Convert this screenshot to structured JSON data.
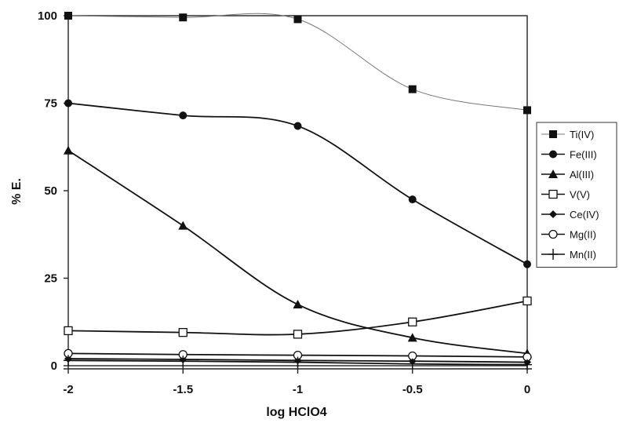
{
  "chart_data": {
    "type": "line",
    "title": "",
    "xlabel": "log HClO4",
    "ylabel": "% E.",
    "xlim": [
      -2,
      0
    ],
    "ylim": [
      0,
      100
    ],
    "x_ticks": [
      -2,
      -1.5,
      -1,
      -0.5,
      0
    ],
    "x_tick_labels": [
      "-2",
      "-1.5",
      "-1",
      "-0.5",
      "0"
    ],
    "y_ticks": [
      0,
      25,
      50,
      75,
      100
    ],
    "y_tick_labels": [
      "0",
      "25",
      "50",
      "75",
      "100"
    ],
    "grid": false,
    "legend_position": "right",
    "x": [
      -2,
      -1.5,
      -1,
      -0.5,
      0
    ],
    "series": [
      {
        "name": "Ti(IV)",
        "marker": "square-filled",
        "line": "thin",
        "values": [
          100,
          99.5,
          99,
          79,
          73
        ]
      },
      {
        "name": "Fe(III)",
        "marker": "circle-filled",
        "line": "thick",
        "values": [
          75,
          71.5,
          68.5,
          47.5,
          29
        ]
      },
      {
        "name": "Al(III)",
        "marker": "triangle-filled",
        "line": "thick",
        "values": [
          61.5,
          40,
          17.5,
          8,
          3.5
        ]
      },
      {
        "name": "V(V)",
        "marker": "square-open",
        "line": "thick",
        "values": [
          10,
          9.5,
          9,
          12.5,
          18.5
        ]
      },
      {
        "name": "Ce(IV)",
        "marker": "diamond-filled",
        "line": "thick",
        "values": [
          2,
          1.8,
          1.5,
          1.3,
          1
        ]
      },
      {
        "name": "Mg(II)",
        "marker": "circle-open",
        "line": "thick",
        "values": [
          3.5,
          3.2,
          3,
          2.8,
          2.5
        ]
      },
      {
        "name": "Mn(II)",
        "marker": "plus",
        "line": "thick",
        "values": [
          1.5,
          1.3,
          1,
          0.5,
          0.3
        ]
      }
    ]
  }
}
